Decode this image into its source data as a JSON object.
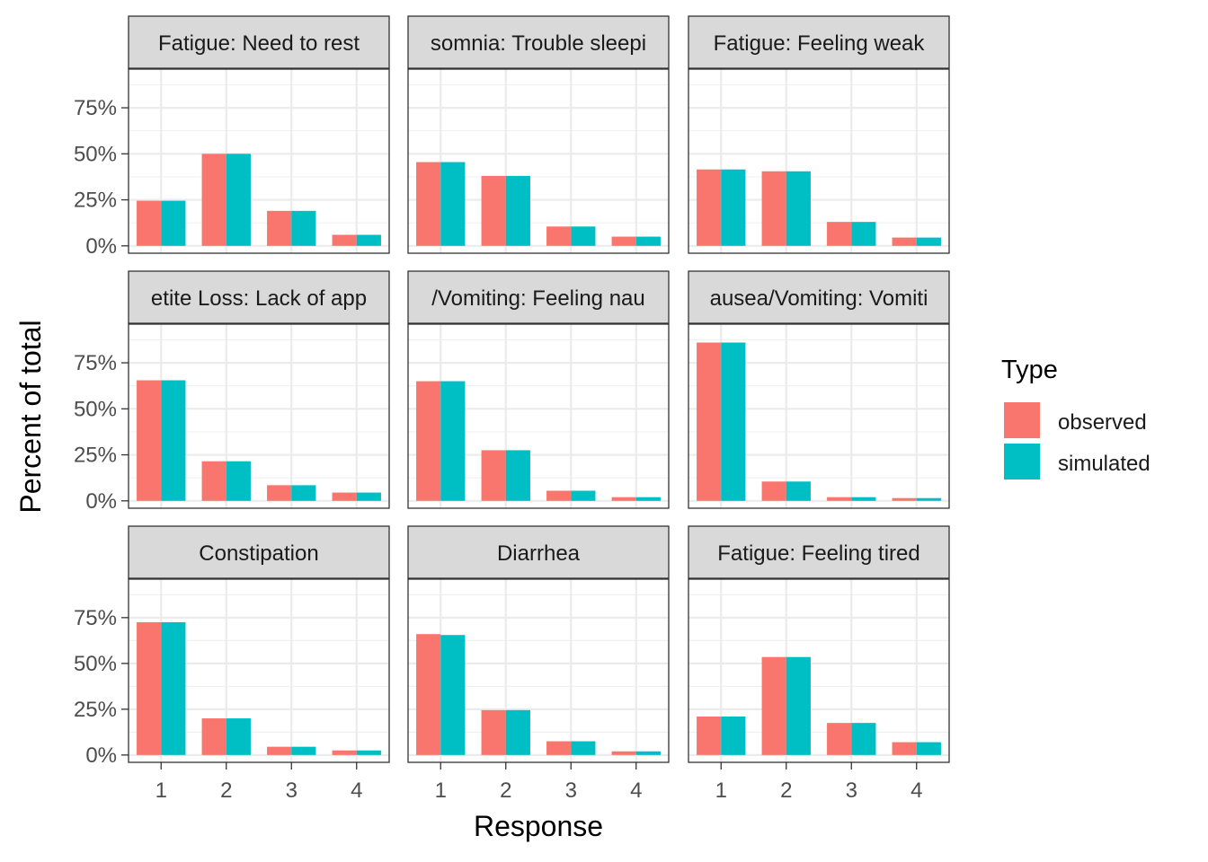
{
  "chart_data": {
    "type": "bar",
    "layout": "facet-grid-3x3",
    "x_label": "Response",
    "y_label": "Percent of total",
    "categories": [
      "1",
      "2",
      "3",
      "4"
    ],
    "y_ticks": [
      "0%",
      "25%",
      "50%",
      "75%"
    ],
    "y_tick_values": [
      0,
      25,
      50,
      75
    ],
    "ylim": [
      -4,
      96
    ],
    "grid": true,
    "legend": {
      "title": "Type",
      "position": "right",
      "entries": [
        {
          "label": "observed",
          "color": "#F8766D"
        },
        {
          "label": "simulated",
          "color": "#00BFC4"
        }
      ]
    },
    "panels": [
      {
        "strip": "Fatigue: Need to rest",
        "strip_visible": "Fatigue: Need to rest",
        "observed": [
          24.5,
          50,
          19,
          6
        ],
        "simulated": [
          24.5,
          50,
          19,
          6
        ]
      },
      {
        "strip": "somnia: Trouble sleepi",
        "strip_visible": "somnia: Trouble sleepi",
        "observed": [
          45.5,
          38,
          10.5,
          5
        ],
        "simulated": [
          45.5,
          38,
          10.5,
          5
        ]
      },
      {
        "strip": "Fatigue: Feeling weak",
        "strip_visible": "Fatigue: Feeling weak",
        "observed": [
          41.5,
          40.5,
          13,
          4.5
        ],
        "simulated": [
          41.5,
          40.5,
          13,
          4.5
        ]
      },
      {
        "strip": "etite Loss: Lack of app",
        "strip_visible": "etite Loss: Lack of app",
        "observed": [
          65.5,
          21.5,
          8.5,
          4.5
        ],
        "simulated": [
          65.5,
          21.5,
          8.5,
          4.5
        ]
      },
      {
        "strip": "/Vomiting: Feeling nau",
        "strip_visible": "/Vomiting: Feeling nau",
        "observed": [
          65,
          27.5,
          5.5,
          2
        ],
        "simulated": [
          65,
          27.5,
          5.5,
          2
        ]
      },
      {
        "strip": "ausea/Vomiting: Vomiti",
        "strip_visible": "ausea/Vomiting: Vomiti",
        "observed": [
          86,
          10.5,
          2,
          1.5
        ],
        "simulated": [
          86,
          10.5,
          2,
          1.5
        ]
      },
      {
        "strip": "Constipation",
        "strip_visible": "Constipation",
        "observed": [
          72.5,
          20,
          4.5,
          2.5
        ],
        "simulated": [
          72.5,
          20,
          4.5,
          2.5
        ]
      },
      {
        "strip": "Diarrhea",
        "strip_visible": "Diarrhea",
        "observed": [
          66,
          24.5,
          7.5,
          2
        ],
        "simulated": [
          65.5,
          24.5,
          7.5,
          2
        ]
      },
      {
        "strip": "Fatigue: Feeling tired",
        "strip_visible": "Fatigue: Feeling tired",
        "observed": [
          21,
          53.5,
          17.5,
          7
        ],
        "simulated": [
          21,
          53.5,
          17.5,
          7
        ]
      }
    ]
  }
}
